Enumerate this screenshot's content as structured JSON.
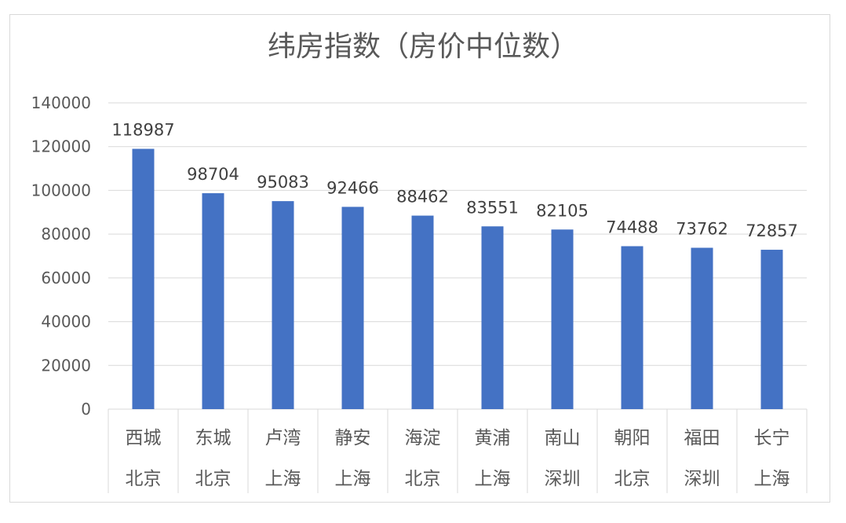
{
  "chart_data": {
    "type": "bar",
    "title": "纬房指数（房价中位数）",
    "categories": [
      [
        "西城",
        "北京"
      ],
      [
        "东城",
        "北京"
      ],
      [
        "卢湾",
        "上海"
      ],
      [
        "静安",
        "上海"
      ],
      [
        "海淀",
        "北京"
      ],
      [
        "黄浦",
        "上海"
      ],
      [
        "南山",
        "深圳"
      ],
      [
        "朝阳",
        "北京"
      ],
      [
        "福田",
        "深圳"
      ],
      [
        "长宁",
        "上海"
      ]
    ],
    "values": [
      118987,
      98704,
      95083,
      92466,
      88462,
      83551,
      82105,
      74488,
      73762,
      72857
    ],
    "ylim": [
      0,
      140000
    ],
    "yticks": [
      0,
      20000,
      40000,
      60000,
      80000,
      100000,
      120000,
      140000
    ],
    "grid": true,
    "bar_color": "#4472C4",
    "gridline_color": "#d9d9d9",
    "data_labels": true
  }
}
